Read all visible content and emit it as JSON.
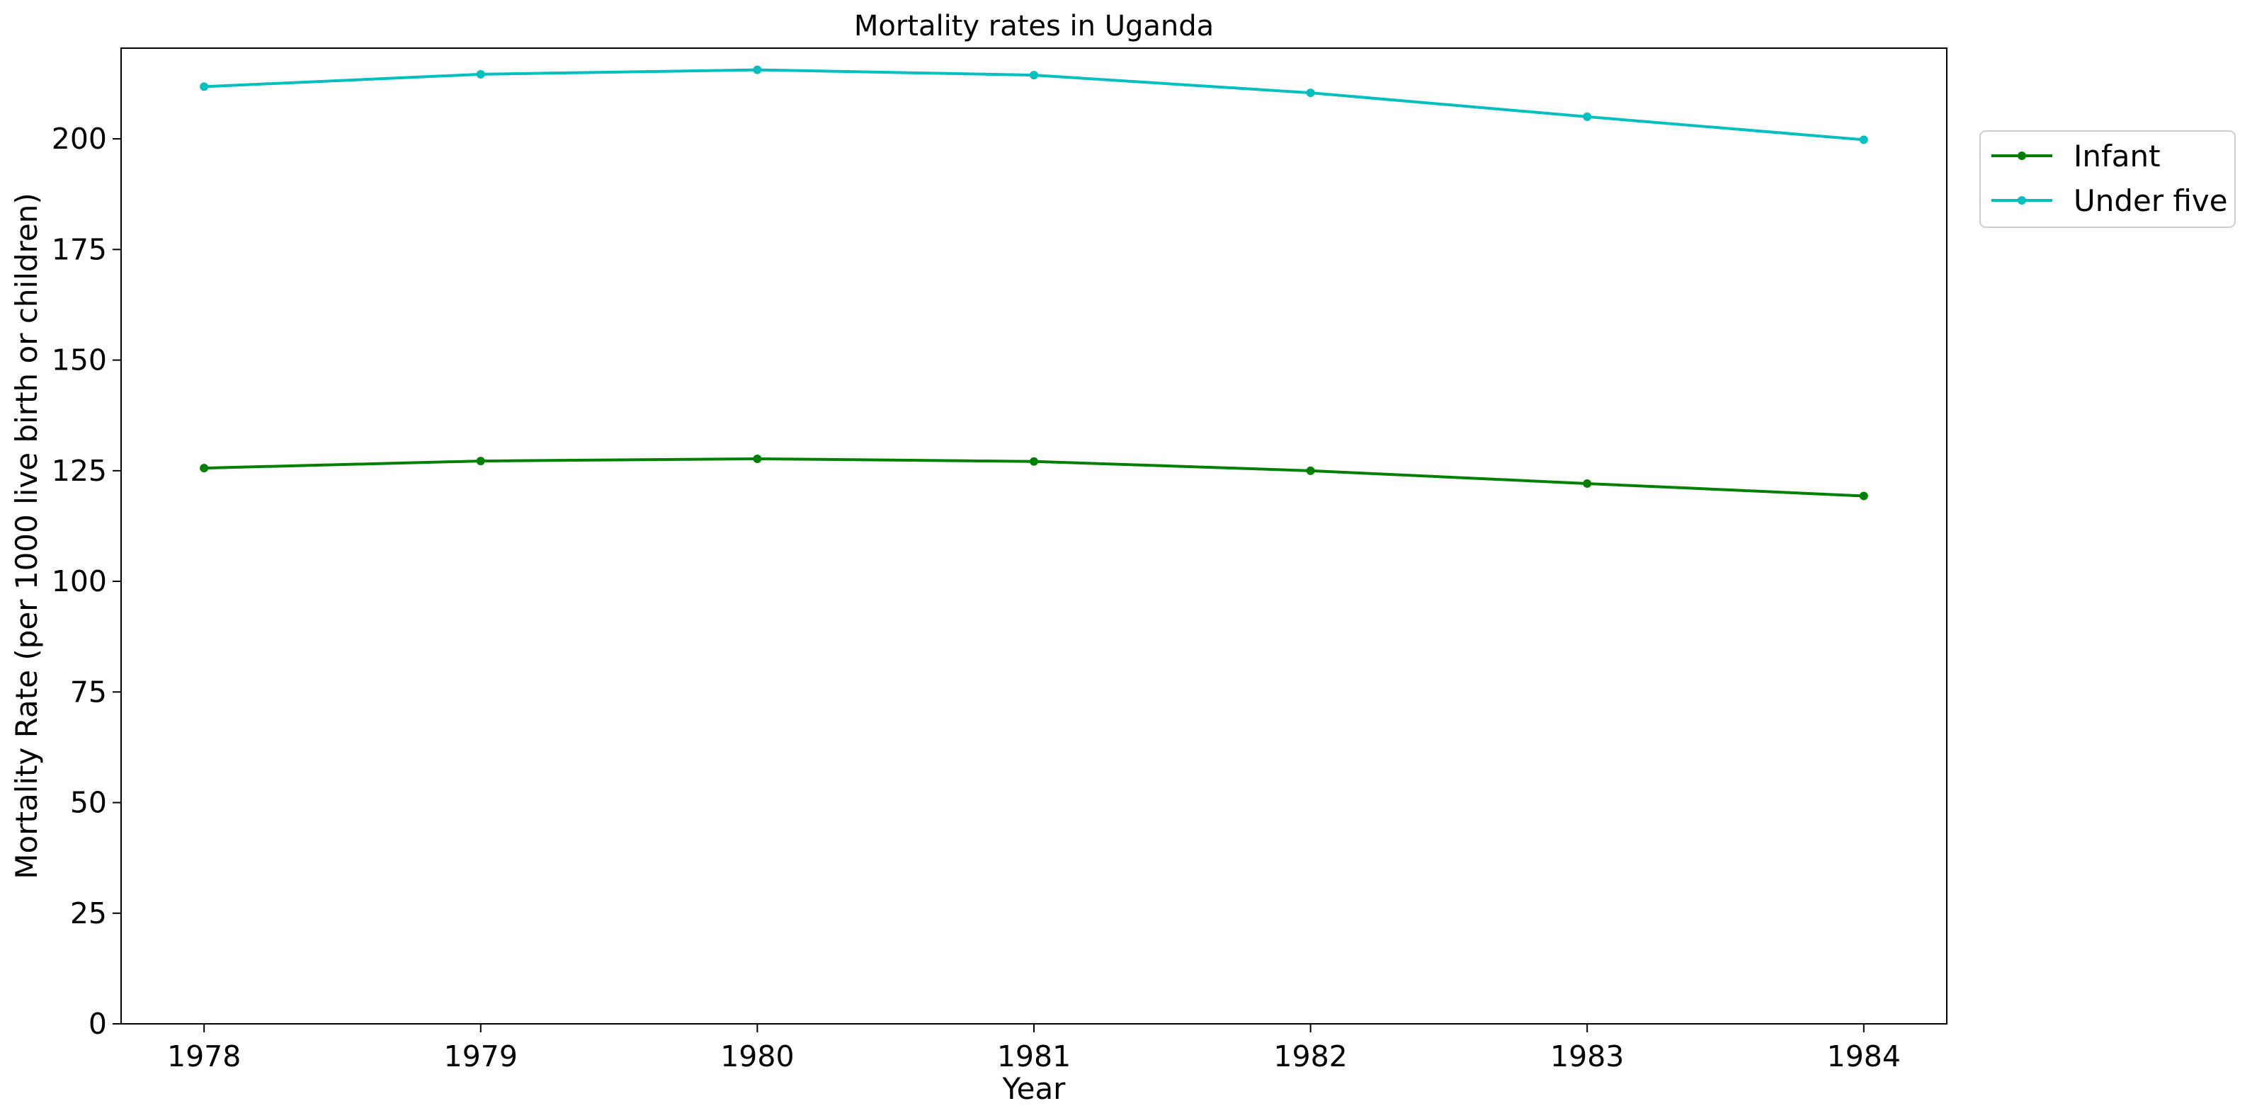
{
  "chart_data": {
    "type": "line",
    "title": "Mortality rates in Uganda",
    "xlabel": "Year",
    "ylabel": "Mortality Rate (per 1000 live birth or children)",
    "x": [
      1978,
      1979,
      1980,
      1981,
      1982,
      1983,
      1984
    ],
    "x_tick_labels": [
      "1978",
      "1979",
      "1980",
      "1981",
      "1982",
      "1983",
      "1984"
    ],
    "y_ticks": [
      0,
      25,
      50,
      75,
      100,
      125,
      150,
      175,
      200
    ],
    "y_tick_labels": [
      "0",
      "25",
      "50",
      "75",
      "100",
      "125",
      "150",
      "175",
      "200"
    ],
    "xlim": [
      1977.7,
      1984.3
    ],
    "ylim": [
      0,
      220.5
    ],
    "grid": false,
    "legend_position": "outside-top-right",
    "series": [
      {
        "name": "Infant",
        "color": "#008000",
        "values": [
          125.6,
          127.2,
          127.7,
          127.1,
          125.0,
          122.1,
          119.3
        ]
      },
      {
        "name": "Under five",
        "color": "#00bfbf",
        "values": [
          211.8,
          214.6,
          215.6,
          214.4,
          210.4,
          205.0,
          199.8
        ]
      }
    ]
  }
}
